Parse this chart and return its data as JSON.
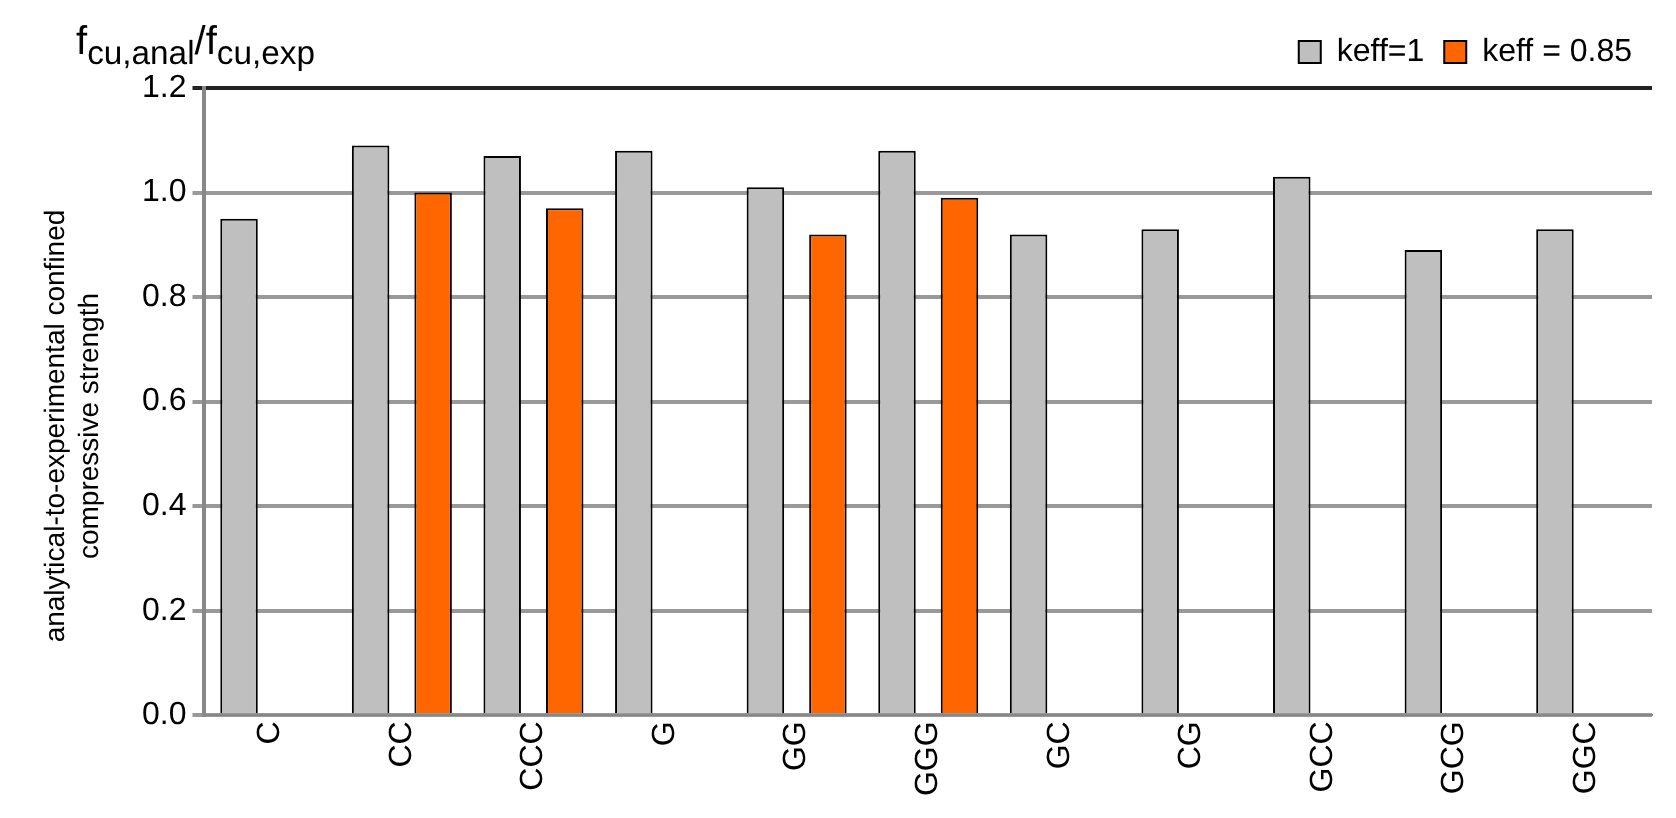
{
  "chart_data": {
    "type": "bar",
    "title": "f$_{cu,anal}$/f$_{cu,exp}$",
    "ylabel": "analytical-to-experimental confined compressive strength",
    "categories": [
      "C",
      "CC",
      "CCC",
      "G",
      "GG",
      "GGG",
      "GC",
      "CG",
      "GCC",
      "GCG",
      "GGC"
    ],
    "series": [
      {
        "name": "keff=1",
        "color": "#bfbfbf",
        "values": [
          0.95,
          1.09,
          1.07,
          1.08,
          1.01,
          1.08,
          0.92,
          0.93,
          1.03,
          0.89,
          0.93
        ]
      },
      {
        "name": "keff = 0.85",
        "color": "#ff6600",
        "values": [
          null,
          1.0,
          0.97,
          null,
          0.92,
          0.99,
          null,
          null,
          null,
          null,
          null
        ]
      }
    ],
    "ylim": [
      0,
      1.2
    ],
    "yticks": [
      {
        "value": 0,
        "label": "0.0"
      },
      0.2,
      0.4,
      0.6,
      0.8,
      {
        "value": 1,
        "label": "1.0"
      },
      1.2
    ],
    "grid": "y",
    "legend": "top right"
  }
}
